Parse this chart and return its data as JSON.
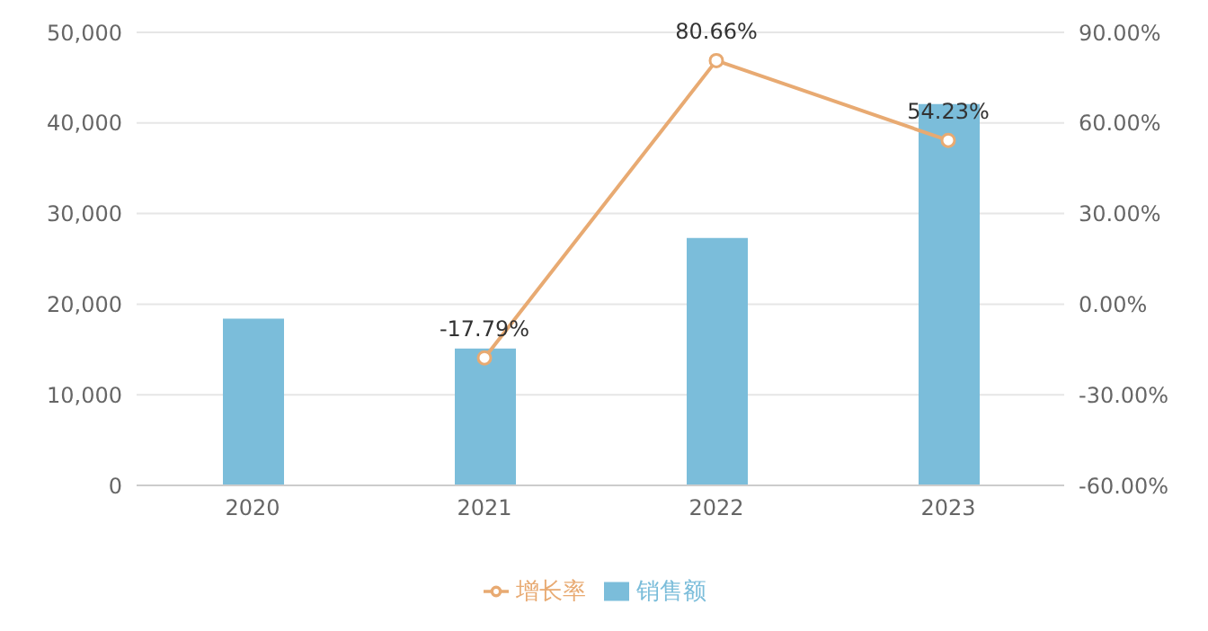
{
  "chart_data": {
    "type": "bar",
    "categories": [
      "2020",
      "2021",
      "2022",
      "2023"
    ],
    "series": [
      {
        "name": "销售额",
        "color": "#7bbdda",
        "values": [
          18400,
          15100,
          27300,
          42100
        ]
      },
      {
        "name": "增长率",
        "type": "line",
        "axis": "y2",
        "color": "#e8aa72",
        "values": [
          null,
          -17.79,
          80.66,
          54.23
        ],
        "value_labels": [
          null,
          "-17.79%",
          "80.66%",
          "54.23%"
        ]
      }
    ],
    "ylim": [
      0,
      50000
    ],
    "yticks": [
      0,
      {
        "value": 10000,
        "label": "10,000"
      },
      {
        "value": 20000,
        "label": "20,000"
      },
      {
        "value": 30000,
        "label": "30,000"
      },
      {
        "value": 40000,
        "label": "40,000"
      },
      {
        "value": 50000,
        "label": "50,000"
      }
    ],
    "y2lim": [
      -60,
      90
    ],
    "y2ticks": [
      {
        "value": -60,
        "label": "-60.00%"
      },
      {
        "value": -30,
        "label": "-30.00%"
      },
      {
        "value": 0,
        "label": "0.00%"
      },
      {
        "value": 30,
        "label": "30.00%"
      },
      {
        "value": 60,
        "label": "60.00%"
      },
      {
        "value": 90,
        "label": "90.00%"
      }
    ],
    "grid": "y",
    "legend": "bottom",
    "marker": "circle",
    "line_style": "solid"
  }
}
